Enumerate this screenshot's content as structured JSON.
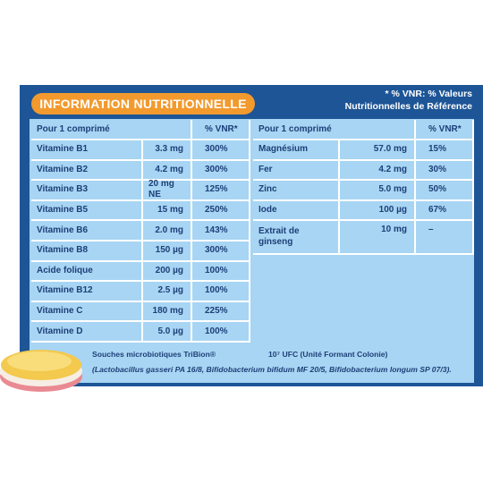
{
  "header": {
    "title": "INFORMATION NUTRITIONNELLE",
    "note": [
      "* % VNR: % Valeurs",
      "Nutritionnelles de Référence"
    ]
  },
  "left_table": {
    "columns": [
      "Pour 1 comprimé",
      "% VNR*"
    ],
    "rows": [
      [
        "Vitamine B1",
        "3.3 mg",
        "300%"
      ],
      [
        "Vitamine B2",
        "4.2 mg",
        "300%"
      ],
      [
        "Vitamine B3",
        "20 mg NE",
        "125%"
      ],
      [
        "Vitamine B5",
        "15 mg",
        "250%"
      ],
      [
        "Vitamine B6",
        "2.0 mg",
        "143%"
      ],
      [
        "Vitamine B8",
        "150 µg",
        "300%"
      ],
      [
        "Acide folique",
        "200 µg",
        "100%"
      ],
      [
        "Vitamine B12",
        "2.5 µg",
        "100%"
      ],
      [
        "Vitamine C",
        "180 mg",
        "225%"
      ],
      [
        "Vitamine D",
        "5.0 µg",
        "100%"
      ]
    ]
  },
  "right_table": {
    "columns": [
      "Pour 1 comprimé",
      "% VNR*"
    ],
    "rows": [
      [
        "Magnésium",
        "57.0 mg",
        "15%"
      ],
      [
        "Fer",
        "4.2 mg",
        "30%"
      ],
      [
        "Zinc",
        "5.0 mg",
        "50%"
      ],
      [
        "Iode",
        "100 µg",
        "67%"
      ],
      [
        "Extrait de ginseng",
        "10 mg",
        "–"
      ]
    ]
  },
  "footer": {
    "strain": "Souches microbiotiques TriBion®",
    "count": "10⁷ UFC (Unité Formant Colonie)",
    "species": "(Lactobacillus gasseri PA 16/8, Bifidobacterium bifidum MF 20/5, Bifidobacterium longum SP 07/3)."
  }
}
